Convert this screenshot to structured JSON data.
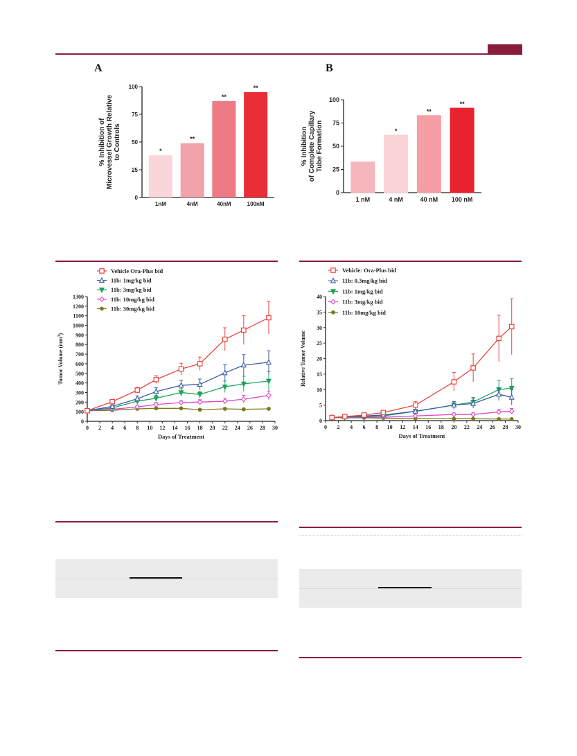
{
  "page": {
    "brand_color": "#8a1c3c"
  },
  "panels": {
    "a_letter": "A",
    "b_letter": "B"
  },
  "chart_data": [
    {
      "id": "A",
      "type": "bar",
      "categories": [
        "1nM",
        "4nM",
        "40nM",
        "100nM"
      ],
      "values": [
        38,
        49,
        87,
        95
      ],
      "annotations": [
        "*",
        "**",
        "**",
        "**"
      ],
      "ylabel_lines": [
        "% Inhibition of",
        "Microvessel Growth Relative",
        "to Controls"
      ],
      "ylim": [
        0,
        100
      ],
      "yticks": [
        0,
        25,
        50,
        75,
        100
      ],
      "colors": [
        "#f9d6da",
        "#f2a2aa",
        "#ee7b83",
        "#ea2e36"
      ]
    },
    {
      "id": "B",
      "type": "bar",
      "categories": [
        "1 nM",
        "4 nM",
        "40 nM",
        "100 nM"
      ],
      "values": [
        33,
        62,
        83,
        91
      ],
      "annotations": [
        "",
        "*",
        "**",
        "**"
      ],
      "ylabel_lines": [
        "% Inhibition",
        "of Complete Capillary",
        "Tube Formation"
      ],
      "ylim": [
        0,
        100
      ],
      "yticks": [
        0,
        25,
        50,
        75,
        100
      ],
      "colors": [
        "#f5b7bc",
        "#fad3d6",
        "#f59ea4",
        "#e8232d"
      ]
    },
    {
      "id": "C",
      "type": "line",
      "xlabel": "Days of Treatment",
      "ylabel": "Tumor Volume (mm",
      "ylabel_sup": "3",
      "ylabel_end": ")",
      "xlim": [
        0,
        30
      ],
      "ylim": [
        0,
        1300
      ],
      "xticks": [
        0,
        2,
        4,
        6,
        8,
        10,
        12,
        14,
        16,
        18,
        20,
        22,
        24,
        26,
        28,
        30
      ],
      "yticks": [
        0,
        100,
        200,
        300,
        400,
        500,
        600,
        700,
        800,
        900,
        1000,
        1100,
        1200,
        1300
      ],
      "x": [
        0,
        4,
        8,
        11,
        15,
        18,
        22,
        25,
        29
      ],
      "series": [
        {
          "name": "Vehicle Ora-Plus bid",
          "color": "#e8453c",
          "marker": "square",
          "values": [
            110,
            205,
            325,
            435,
            545,
            600,
            855,
            950,
            1080
          ],
          "err": [
            10,
            20,
            30,
            40,
            60,
            70,
            120,
            150,
            170
          ]
        },
        {
          "name": "11b: 1mg/kg bid",
          "color": "#3b5aa8",
          "marker": "triangle-up",
          "values": [
            110,
            155,
            235,
            310,
            375,
            385,
            505,
            585,
            615
          ],
          "err": [
            10,
            15,
            30,
            40,
            50,
            55,
            85,
            110,
            120
          ]
        },
        {
          "name": "11b: 3mg/kg bid",
          "color": "#1aa55a",
          "marker": "triangle-down",
          "values": [
            110,
            140,
            210,
            240,
            300,
            280,
            360,
            390,
            420
          ],
          "err": [
            10,
            15,
            25,
            30,
            40,
            35,
            60,
            80,
            100
          ]
        },
        {
          "name": "11b: 10mg/kg bid",
          "color": "#e044c9",
          "marker": "diamond",
          "values": [
            110,
            125,
            150,
            175,
            195,
            200,
            210,
            230,
            270
          ],
          "err": [
            8,
            10,
            15,
            20,
            20,
            25,
            30,
            40,
            45
          ]
        },
        {
          "name": "11b: 30mg/kg bid",
          "color": "#7a7a1e",
          "marker": "circle",
          "values": [
            110,
            115,
            130,
            135,
            135,
            120,
            130,
            125,
            130
          ],
          "err": [
            5,
            8,
            10,
            10,
            12,
            12,
            12,
            12,
            12
          ]
        }
      ]
    },
    {
      "id": "D",
      "type": "line",
      "xlabel": "Days of Treatment",
      "ylabel": "Relative Tumor Volume",
      "xlim": [
        0,
        30
      ],
      "ylim": [
        0,
        40
      ],
      "xticks": [
        0,
        2,
        4,
        6,
        8,
        10,
        12,
        14,
        16,
        18,
        20,
        22,
        24,
        26,
        28,
        30
      ],
      "yticks": [
        0,
        5,
        10,
        15,
        20,
        25,
        30,
        35,
        40
      ],
      "x": [
        1,
        3,
        6,
        9,
        14,
        20,
        23,
        27,
        29
      ],
      "series": [
        {
          "name": "Vehicle: Ora-Plus bid",
          "color": "#e8453c",
          "marker": "square",
          "values": [
            1.0,
            1.3,
            1.8,
            2.6,
            5.0,
            12.5,
            17.0,
            26.5,
            30.3
          ],
          "err": [
            0.1,
            0.2,
            0.3,
            0.4,
            1.2,
            3.0,
            4.5,
            7.5,
            9.0
          ]
        },
        {
          "name": "11b: 0.3mg/kg bid",
          "color": "#3b5aa8",
          "marker": "triangle-up",
          "values": [
            1.0,
            1.2,
            1.5,
            1.8,
            3.0,
            5.0,
            5.5,
            8.5,
            7.5
          ],
          "err": [
            0.1,
            0.2,
            0.3,
            0.3,
            0.6,
            1.2,
            1.5,
            2.0,
            2.5
          ]
        },
        {
          "name": "11b: 1mg/kg bid",
          "color": "#1aa55a",
          "marker": "triangle-down",
          "values": [
            1.0,
            1.1,
            1.3,
            1.5,
            3.0,
            5.0,
            6.0,
            10.0,
            10.5
          ],
          "err": [
            0.1,
            0.2,
            0.2,
            0.3,
            0.6,
            1.0,
            1.5,
            3.0,
            3.0
          ]
        },
        {
          "name": "11b: 3mg/kg bid",
          "color": "#e044c9",
          "marker": "diamond",
          "values": [
            1.0,
            1.0,
            1.1,
            1.1,
            1.5,
            2.0,
            2.0,
            2.8,
            3.0
          ],
          "err": [
            0.1,
            0.1,
            0.1,
            0.2,
            0.3,
            0.4,
            0.5,
            0.8,
            0.9
          ]
        },
        {
          "name": "11b: 10mg/kg bid",
          "color": "#7a7a1e",
          "marker": "circle",
          "values": [
            1.0,
            0.9,
            0.9,
            0.8,
            0.7,
            0.6,
            0.6,
            0.5,
            0.5
          ],
          "err": [
            0.1,
            0.1,
            0.1,
            0.1,
            0.1,
            0.1,
            0.1,
            0.1,
            0.1
          ]
        }
      ]
    }
  ]
}
